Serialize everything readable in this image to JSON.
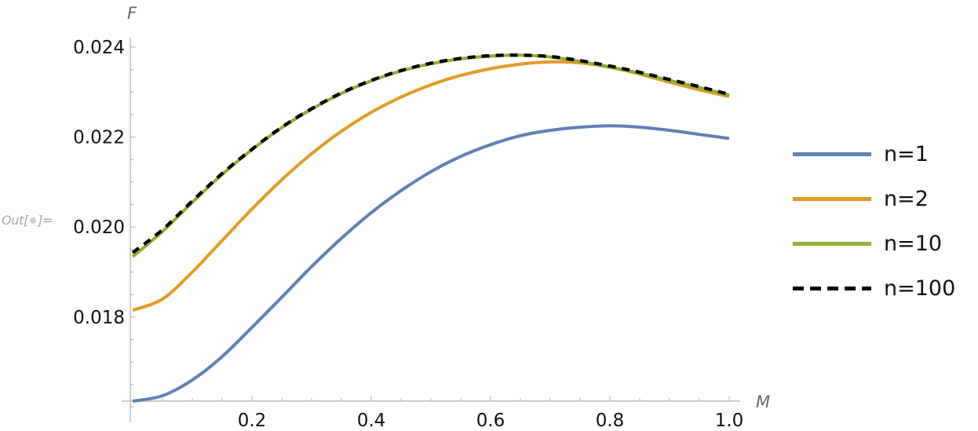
{
  "cell": {
    "out_label_prefix": "Out[",
    "out_label_suffix": "]="
  },
  "chart_data": {
    "type": "line",
    "title": "",
    "xlabel": "M",
    "ylabel": "F",
    "xlim": [
      0,
      1.02
    ],
    "ylim": [
      0.01613,
      0.0241
    ],
    "x_ticks": [
      0.2,
      0.4,
      0.6,
      0.8,
      1.0
    ],
    "x_tick_labels": [
      "0.2",
      "0.4",
      "0.6",
      "0.8",
      "1.0"
    ],
    "y_ticks": [
      0.018,
      0.02,
      0.022,
      0.024
    ],
    "y_tick_labels": [
      "0.018",
      "0.020",
      "0.022",
      "0.024"
    ],
    "grid": false,
    "legend_position": "right",
    "x": [
      0.0,
      0.05,
      0.1,
      0.15,
      0.2,
      0.25,
      0.3,
      0.35,
      0.4,
      0.45,
      0.5,
      0.55,
      0.6,
      0.65,
      0.7,
      0.75,
      0.8,
      0.85,
      0.9,
      0.95,
      1.0
    ],
    "series": [
      {
        "name": "n=1",
        "color": "#5e81b5",
        "dash": false,
        "values": [
          0.01613,
          0.01625,
          0.0166,
          0.01712,
          0.01777,
          0.01844,
          0.01912,
          0.01975,
          0.02032,
          0.02081,
          0.02123,
          0.02157,
          0.02183,
          0.02203,
          0.02215,
          0.02222,
          0.02225,
          0.02222,
          0.02215,
          0.02206,
          0.02197
        ]
      },
      {
        "name": "n=2",
        "color": "#e19c24",
        "dash": false,
        "values": [
          0.01815,
          0.0184,
          0.019,
          0.0197,
          0.0204,
          0.02105,
          0.02163,
          0.02213,
          0.02255,
          0.02289,
          0.02316,
          0.02337,
          0.02352,
          0.02362,
          0.02367,
          0.02365,
          0.02355,
          0.0234,
          0.02322,
          0.02305,
          0.0229
        ]
      },
      {
        "name": "n=10",
        "color": "#8fb032",
        "dash": false,
        "values": [
          0.01934,
          0.0199,
          0.02055,
          0.02117,
          0.02172,
          0.02221,
          0.02262,
          0.02297,
          0.02325,
          0.02347,
          0.02363,
          0.02374,
          0.0238,
          0.02382,
          0.02378,
          0.02368,
          0.02356,
          0.02342,
          0.02326,
          0.0231,
          0.02293
        ]
      },
      {
        "name": "n=100",
        "color": "#000000",
        "dash": true,
        "values": [
          0.01943,
          0.01994,
          0.02058,
          0.02119,
          0.02173,
          0.02222,
          0.02263,
          0.02298,
          0.02326,
          0.02348,
          0.02364,
          0.02375,
          0.02381,
          0.02382,
          0.02379,
          0.0237,
          0.02358,
          0.02344,
          0.02328,
          0.02312,
          0.02295
        ]
      }
    ]
  },
  "legend": [
    {
      "label": "n=1",
      "color": "#5e81b5",
      "style": "solid"
    },
    {
      "label": "n=2",
      "color": "#e19c24",
      "style": "solid"
    },
    {
      "label": "n=10",
      "color": "#8fb032",
      "style": "solid"
    },
    {
      "label": "n=100",
      "color": "#000000",
      "style": "dashed"
    }
  ]
}
